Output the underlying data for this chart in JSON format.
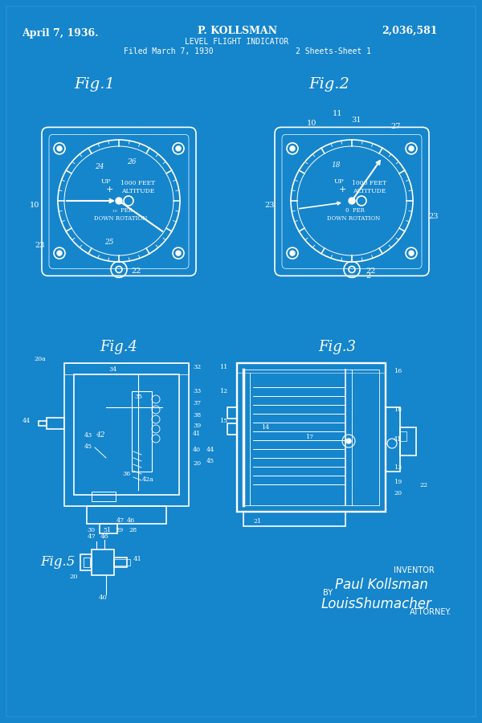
{
  "bg_color": "#1585cc",
  "line_color": "#ffffff",
  "text_color": "#ffffff",
  "title_date": "April 7, 1936.",
  "title_name": "P. KOLLSMAN",
  "title_patent": "2,036,581",
  "title_sub1": "LEVEL FLIGHT INDICATOR",
  "title_sub2": "Filed March 7, 1930",
  "title_sub3": "2 Sheets-Sheet 1",
  "fig1_label": "Fig.1",
  "fig2_label": "Fig.2",
  "fig3_label": "Fig.3",
  "fig4_label": "Fig.4",
  "fig5_label": "Fig.5",
  "inventor_text": "INVENTOR",
  "inventor_sig": "Paul Kollsman",
  "attorney_sig": "LouisShumacher",
  "attorney_label": "ATTORNEY.",
  "by_text": "BY"
}
